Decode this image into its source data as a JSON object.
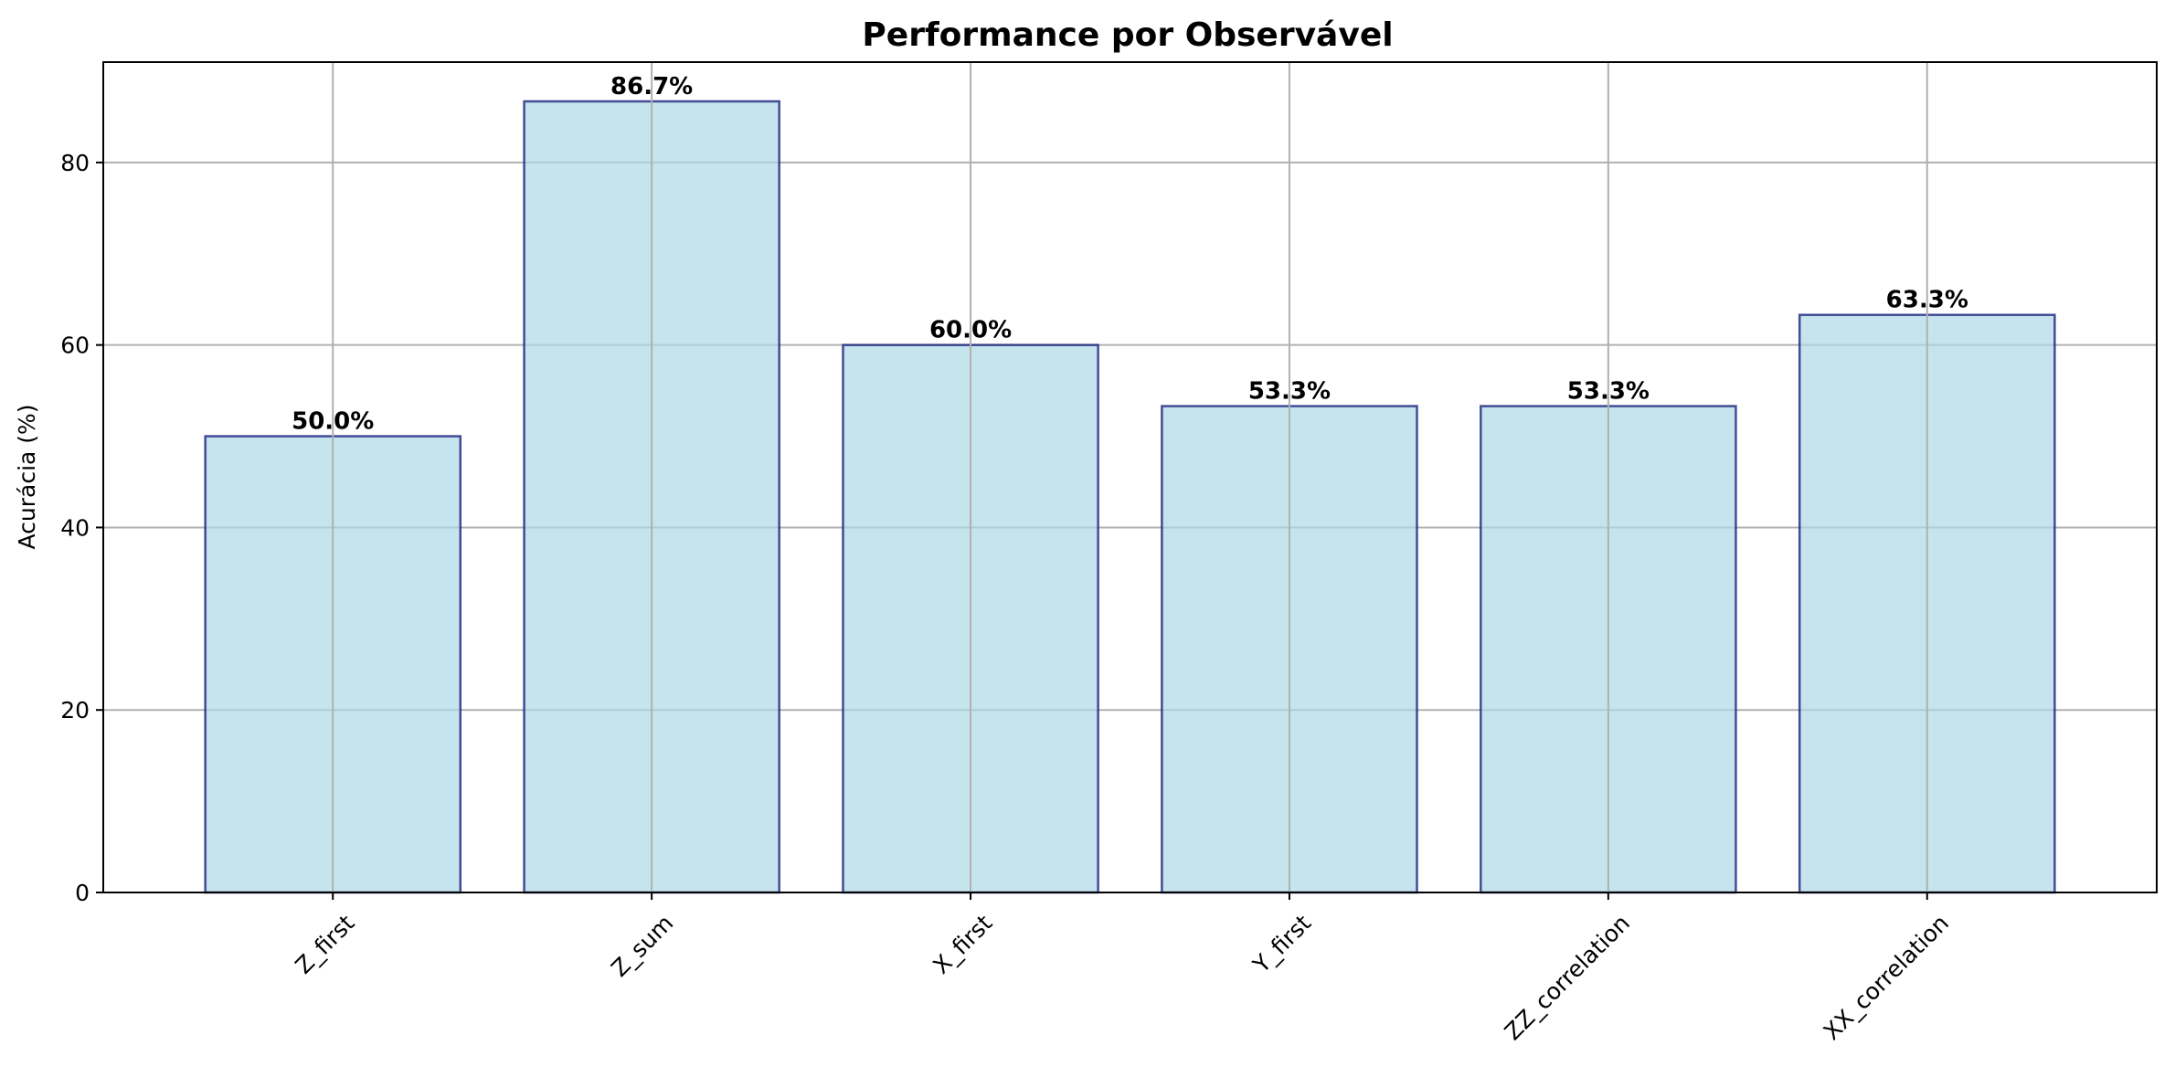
{
  "chart_data": {
    "type": "bar",
    "title": "Performance por Observável",
    "xlabel": "",
    "ylabel": "Acurácia (%)",
    "categories": [
      "Z_first",
      "Z_sum",
      "X_first",
      "Y_first",
      "ZZ_correlation",
      "XX_correlation"
    ],
    "values": [
      50.0,
      86.7,
      60.0,
      53.3,
      53.3,
      63.3
    ],
    "value_labels": [
      "50.0%",
      "86.7%",
      "60.0%",
      "53.3%",
      "53.3%",
      "63.3%"
    ],
    "ylim": [
      0,
      91
    ],
    "y_ticks": [
      0,
      20,
      40,
      60,
      80
    ],
    "grid": true,
    "legend": "none",
    "colors": {
      "bar_fill": "#add8e6",
      "bar_edge": "#1a237e",
      "grid": "#b0b0b0",
      "axes": "#000000"
    }
  }
}
